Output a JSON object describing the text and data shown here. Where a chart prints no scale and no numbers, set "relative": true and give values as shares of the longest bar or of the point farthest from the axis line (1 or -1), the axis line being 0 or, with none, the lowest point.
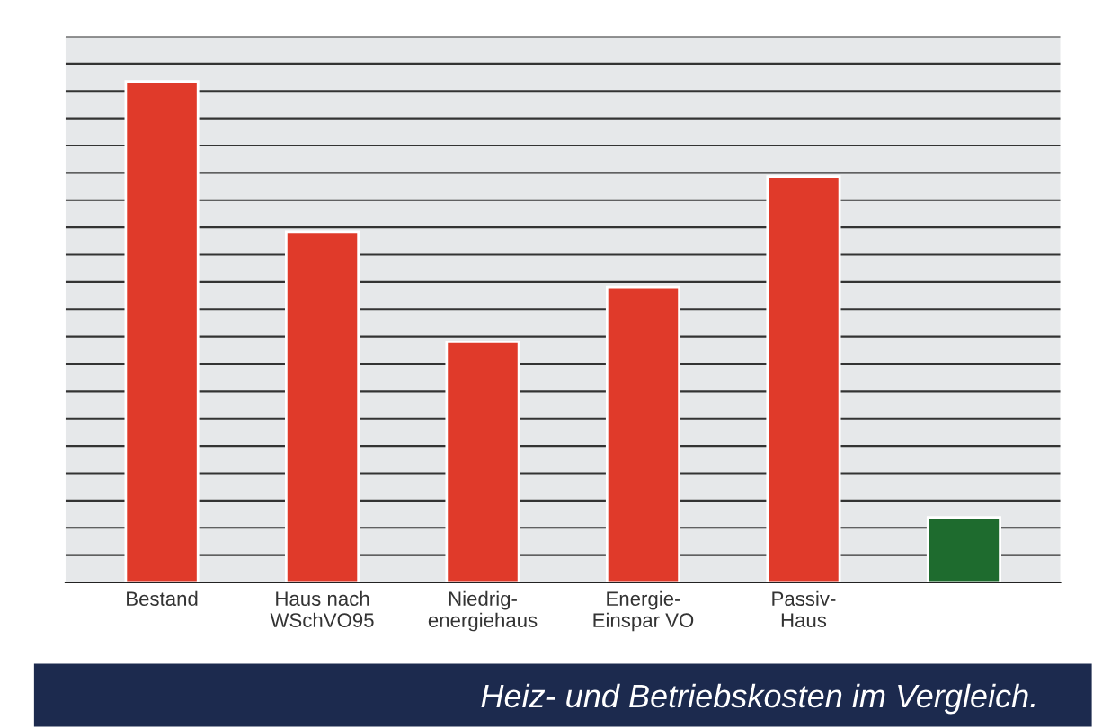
{
  "chart_data": {
    "type": "bar",
    "title": "Heiz- und Betriebskosten im Vergleich.",
    "relative": true,
    "categories": [
      "Bestand",
      "Haus nach\nWSchVO95",
      "Niedrig-\nenergiehaus",
      "Energie-\nEinspar VO",
      "Passiv-\nHaus",
      null
    ],
    "values": [
      1,
      0.7,
      0.48,
      0.59,
      0.81,
      0.13
    ],
    "colors": [
      "#e03a2a",
      "#e03a2a",
      "#e03a2a",
      "#e03a2a",
      "#e03a2a",
      "#1e6b2e"
    ],
    "grid": "y",
    "legend": false
  }
}
